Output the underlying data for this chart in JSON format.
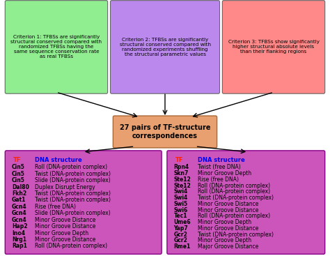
{
  "criterion1": "Criterion 1: TFBSs are significantly\nstructural conserved compared with\nrandomized TFBSs having the\nsame sequence conservation rate\nas real TFBSs",
  "criterion2": "Criterion 2: TFBSs are significantly\nstructural conserved compared with\nrandomized experiments shuffling\nthe structural parametric values",
  "criterion3": "Criterion 3: TFBSs show significantly\nhigher structural absolute levels\nthan their flanking regions",
  "center_box": "27 pairs of TF-structure\ncorrespondences",
  "criterion1_color": "#90EE90",
  "criterion2_color": "#BB88EE",
  "criterion3_color": "#FF8888",
  "center_color": "#E8A070",
  "left_table_color": "#CC55BB",
  "right_table_color": "#CC55BB",
  "left_tf_header": "TF",
  "left_dna_header": "DNA structure",
  "right_tf_header": "TF",
  "right_dna_header": "DNA structure",
  "left_entries": [
    [
      "Cin5",
      "Roll (DNA-protein complex)"
    ],
    [
      "Cin5",
      "Twist (DNA-protein complex)"
    ],
    [
      "Cin5",
      "Slide (DNA-protein complex)"
    ],
    [
      "Dal80",
      "Duplex Disrupt Energy"
    ],
    [
      "Fkh2",
      "Twist (DNA-protein complex)"
    ],
    [
      "Gat1",
      "Twist (DNA-protein complex)"
    ],
    [
      "Gcn4",
      "Rise (free DNA)"
    ],
    [
      "Gcn4",
      "Slide (DNA-protein complex)"
    ],
    [
      "Gcn4",
      "Minor Groove Distance"
    ],
    [
      "Hap2",
      "Minor Groove Distance"
    ],
    [
      "Ino4",
      "Minor Groove Depth"
    ],
    [
      "Nrg1",
      "Minor Groove Distance"
    ],
    [
      "Rap1",
      "Roll (DNA-protein complex)"
    ]
  ],
  "right_entries": [
    [
      "Rpn4",
      "Twist (free DNA)"
    ],
    [
      "Skn7",
      "Minor Groove Depth"
    ],
    [
      "Ste12",
      "Rise (free DNA)"
    ],
    [
      "Ste12",
      "Roll (DNA-protein complex)"
    ],
    [
      "Swi4",
      "Roll (DNA-protein complex)"
    ],
    [
      "Swi4",
      "Twist (DNA-protein complex)"
    ],
    [
      "Swi5",
      "Minor Groove Distance"
    ],
    [
      "Swi6",
      "Minor Groove Distance"
    ],
    [
      "Tec1",
      "Roll (DNA-protein complex)"
    ],
    [
      "Ume6",
      "Minor Groove Depth"
    ],
    [
      "Yap7",
      "Minor Groove Distance"
    ],
    [
      "Gcr2",
      "Twist (DNA-protein complex)"
    ],
    [
      "Gcr2",
      "Minor Groove Depth"
    ],
    [
      "Rme1",
      "Major Groove Distance"
    ]
  ]
}
